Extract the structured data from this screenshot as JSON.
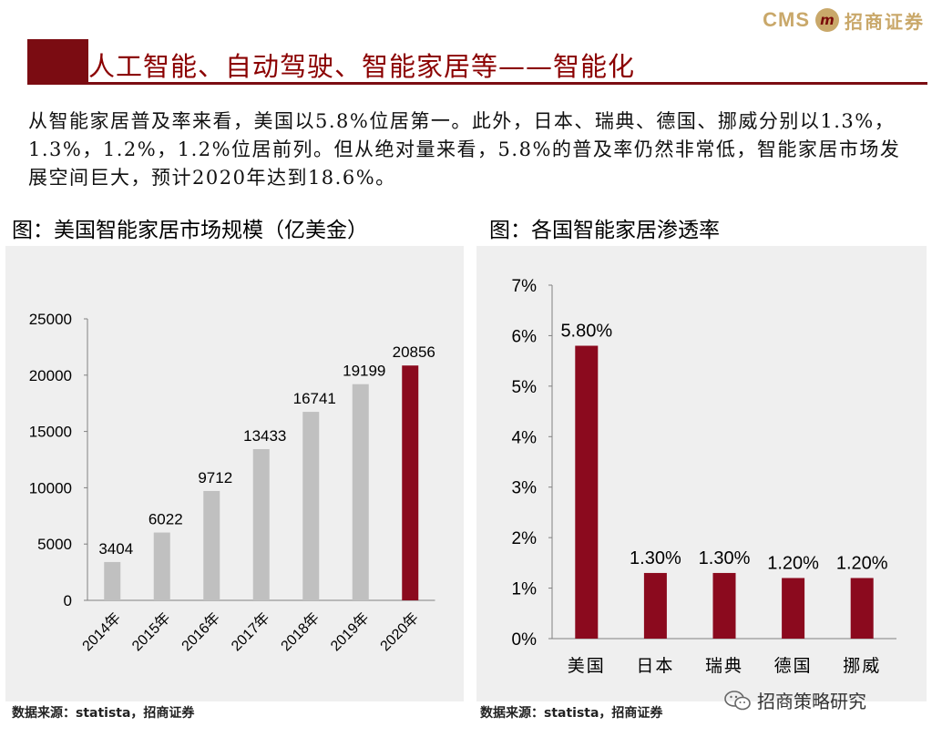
{
  "header": {
    "logo_text": "CMS",
    "logo_mark": "m",
    "logo_cn": "招商证券",
    "title": "人工智能、自动驾驶、智能家居等——智能化"
  },
  "paragraph": "从智能家居普及率来看，美国以5.8%位居第一。此外，日本、瑞典、德国、挪威分别以1.3%，1.3%，1.2%，1.2%位居前列。但从绝对量来看，5.8%的普及率仍然非常低，智能家居市场发展空间巨大，预计2020年达到18.6%。",
  "left_caption": "图：美国智能家居市场规模（亿美金）",
  "right_caption": "图：各国智能家居渗透率",
  "left_source": "数据来源：statista，招商证券",
  "right_source": "数据来源：statista，招商证券",
  "watermark": "招商策略研究",
  "colors": {
    "gray_bar": "#c0c0c0",
    "red_bar": "#8b0a1e",
    "dark_red": "#7b0c12",
    "panel_bg": "#efefef",
    "logo_gold": "#c9a86a"
  },
  "chart_data": [
    {
      "type": "bar",
      "categories": [
        "2014年",
        "2015年",
        "2016年",
        "2017年",
        "2018年",
        "2019年",
        "2020年"
      ],
      "values": [
        3404,
        6022,
        9712,
        13433,
        16741,
        19199,
        20856
      ],
      "data_labels": [
        "3404",
        "6022",
        "9712",
        "13433",
        "16741",
        "19199",
        "20856"
      ],
      "ylim": [
        0,
        25000
      ],
      "yticks": [
        0,
        5000,
        10000,
        15000,
        20000,
        25000
      ],
      "ytick_labels": [
        "0",
        "5000",
        "10000",
        "15000",
        "20000",
        "25000"
      ],
      "bar_colors": [
        "#c0c0c0",
        "#c0c0c0",
        "#c0c0c0",
        "#c0c0c0",
        "#c0c0c0",
        "#c0c0c0",
        "#8b0a1e"
      ],
      "grid": false
    },
    {
      "type": "bar",
      "categories": [
        "美国",
        "日本",
        "瑞典",
        "德国",
        "挪威"
      ],
      "values": [
        5.8,
        1.3,
        1.3,
        1.2,
        1.2
      ],
      "data_labels": [
        "5.80%",
        "1.30%",
        "1.30%",
        "1.20%",
        "1.20%"
      ],
      "ylim": [
        0,
        7
      ],
      "yticks": [
        0,
        1,
        2,
        3,
        4,
        5,
        6,
        7
      ],
      "ytick_labels": [
        "0%",
        "1%",
        "2%",
        "3%",
        "4%",
        "5%",
        "6%",
        "7%"
      ],
      "bar_color": "#8b0a1e",
      "grid": false
    }
  ]
}
